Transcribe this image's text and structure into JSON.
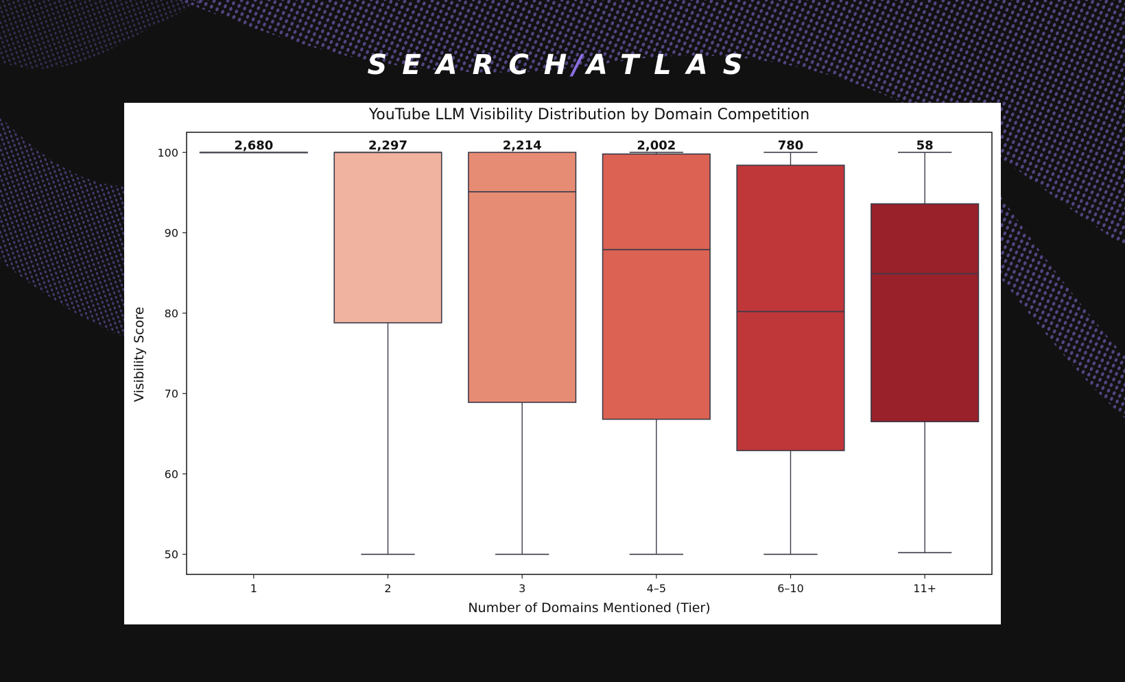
{
  "brand": {
    "logo_left": "SEARCH",
    "logo_slash": "/",
    "logo_right": "ATLAS",
    "accent_color": "#8b6fe0",
    "background_color": "#111111"
  },
  "chart_data": {
    "type": "box",
    "title": "YouTube LLM Visibility Distribution by Domain Competition",
    "xlabel": "Number of Domains Mentioned (Tier)",
    "ylabel": "Visibility Score",
    "ylim": [
      47.5,
      102.5
    ],
    "yticks": [
      50,
      60,
      70,
      80,
      90,
      100
    ],
    "ytick_labels": [
      "50",
      "60",
      "70",
      "80",
      "90",
      "100"
    ],
    "grid": false,
    "legend": null,
    "categories": [
      "1",
      "2",
      "3",
      "4–5",
      "6–10",
      "11+"
    ],
    "counts": [
      2680,
      2297,
      2214,
      2002,
      780,
      58
    ],
    "count_labels": [
      "2,680",
      "2,297",
      "2,214",
      "2,002",
      "780",
      "58"
    ],
    "boxes": [
      {
        "tier": "1",
        "whisker_low": 100,
        "q1": 100,
        "median": 100,
        "q3": 100,
        "whisker_high": 100,
        "color": "#fee0d2"
      },
      {
        "tier": "2",
        "whisker_low": 50,
        "q1": 78.8,
        "median": 100,
        "q3": 100,
        "whisker_high": 100,
        "color": "#f0b3a0"
      },
      {
        "tier": "3",
        "whisker_low": 50,
        "q1": 68.9,
        "median": 95.1,
        "q3": 100,
        "whisker_high": 100,
        "color": "#e78c74"
      },
      {
        "tier": "4–5",
        "whisker_low": 50,
        "q1": 66.8,
        "median": 87.9,
        "q3": 99.8,
        "whisker_high": 100,
        "color": "#dc6353"
      },
      {
        "tier": "6–10",
        "whisker_low": 50,
        "q1": 62.9,
        "median": 80.2,
        "q3": 98.4,
        "whisker_high": 100,
        "color": "#bf3739"
      },
      {
        "tier": "11+",
        "whisker_low": 50.2,
        "q1": 66.5,
        "median": 84.9,
        "q3": 93.6,
        "whisker_high": 100,
        "color": "#99212a"
      }
    ]
  }
}
